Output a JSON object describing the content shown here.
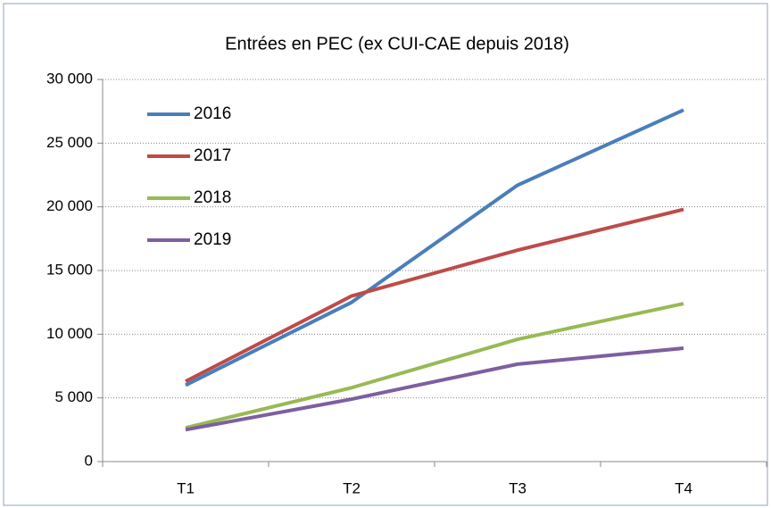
{
  "chart_data": {
    "type": "line",
    "title": "Entrées en PEC (ex CUI-CAE depuis 2018)",
    "categories": [
      "T1",
      "T2",
      "T3",
      "T4"
    ],
    "series": [
      {
        "name": "2016",
        "color": "#4a7ebb",
        "values": [
          6000,
          12500,
          21700,
          27600
        ]
      },
      {
        "name": "2017",
        "color": "#be4b48",
        "values": [
          6300,
          13000,
          16600,
          19800
        ]
      },
      {
        "name": "2018",
        "color": "#98b954",
        "values": [
          2650,
          5800,
          9600,
          12400
        ]
      },
      {
        "name": "2019",
        "color": "#7d5fa0",
        "values": [
          2500,
          4900,
          7650,
          8900
        ]
      }
    ],
    "ylim": [
      0,
      30000
    ],
    "yticks": [
      0,
      {
        "value": 5000,
        "label": "5 000"
      },
      {
        "value": 10000,
        "label": "10 000"
      },
      {
        "value": 15000,
        "label": "15 000"
      },
      {
        "value": 20000,
        "label": "20 000"
      },
      {
        "value": 25000,
        "label": "25 000"
      },
      {
        "value": 30000,
        "label": "30 000"
      }
    ],
    "grid": true,
    "legend": "top-left"
  }
}
